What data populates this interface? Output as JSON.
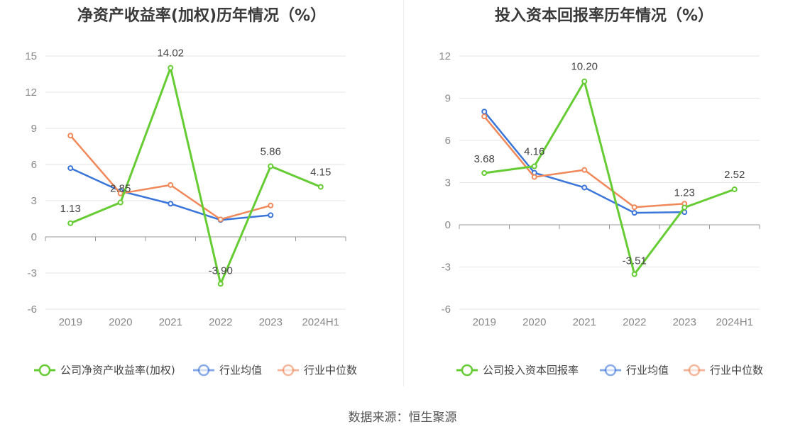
{
  "source": "数据来源：恒生聚源",
  "colors": {
    "company": "#66cc33",
    "avg": "#3a75d9",
    "median": "#f0885a",
    "grid": "#e6e6e6",
    "axis": "#999999"
  },
  "chart_data": [
    {
      "type": "line",
      "title": "净资产收益率(加权)历年情况（%）",
      "categories": [
        "2019",
        "2020",
        "2021",
        "2022",
        "2023",
        "2024H1"
      ],
      "ylim": [
        -6,
        15
      ],
      "yticks": [
        15,
        12,
        9,
        6,
        3,
        0,
        -3,
        -6
      ],
      "ytick_labels": [
        "15",
        "12",
        "9",
        "6",
        "3",
        "0",
        "-3",
        "-6"
      ],
      "grid": true,
      "legend_position": "bottom",
      "series": [
        {
          "name": "公司净资产收益率(加权)",
          "color": "#66cc33",
          "values": [
            1.13,
            2.85,
            14.02,
            -3.9,
            5.86,
            4.15
          ],
          "labels": [
            "1.13",
            "2.85",
            "14.02",
            "-3.90",
            "5.86",
            "4.15"
          ]
        },
        {
          "name": "行业均值",
          "color": "#3a75d9",
          "values": [
            5.7,
            3.8,
            2.75,
            1.4,
            1.8,
            null
          ]
        },
        {
          "name": "行业中位数",
          "color": "#f0885a",
          "values": [
            8.4,
            3.6,
            4.3,
            1.45,
            2.6,
            null
          ]
        }
      ]
    },
    {
      "type": "line",
      "title": "投入资本回报率历年情况（%）",
      "categories": [
        "2019",
        "2020",
        "2021",
        "2022",
        "2023",
        "2024H1"
      ],
      "ylim": [
        -6,
        12
      ],
      "yticks": [
        12,
        9,
        6,
        3,
        0,
        -3,
        -6
      ],
      "ytick_labels": [
        "12",
        "9",
        "6",
        "3",
        "0",
        "-3",
        "-6"
      ],
      "grid": true,
      "legend_position": "bottom",
      "series": [
        {
          "name": "公司投入资本回报率",
          "color": "#66cc33",
          "values": [
            3.68,
            4.16,
            10.2,
            -3.51,
            1.23,
            2.52
          ],
          "labels": [
            "3.68",
            "4.16",
            "10.20",
            "-3.51",
            "1.23",
            "2.52"
          ]
        },
        {
          "name": "行业均值",
          "color": "#3a75d9",
          "values": [
            8.05,
            3.7,
            2.65,
            0.85,
            0.9,
            null
          ]
        },
        {
          "name": "行业中位数",
          "color": "#f0885a",
          "values": [
            7.7,
            3.4,
            3.9,
            1.25,
            1.5,
            null
          ]
        }
      ]
    }
  ]
}
